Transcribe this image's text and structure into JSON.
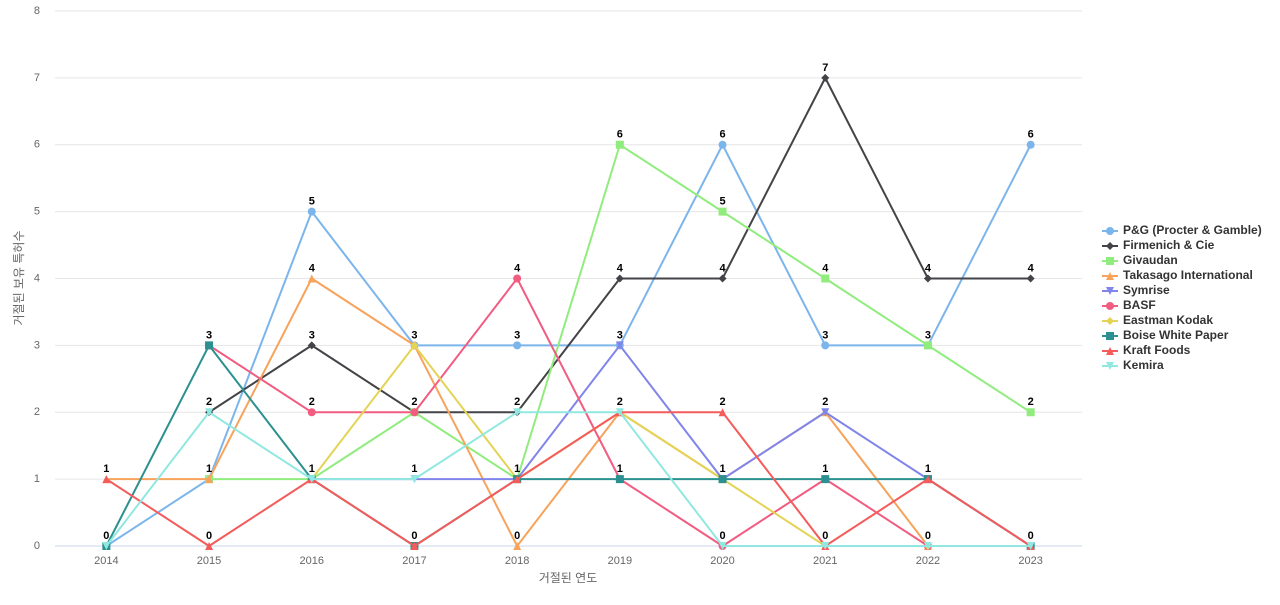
{
  "chart_data": {
    "type": "line",
    "x_label": "거절된 연도",
    "y_label": "거절된 보유 특허수",
    "categories": [
      "2014",
      "2015",
      "2016",
      "2017",
      "2018",
      "2019",
      "2020",
      "2021",
      "2022",
      "2023"
    ],
    "ylim": [
      0,
      8
    ],
    "yticks": [
      0,
      1,
      2,
      3,
      4,
      5,
      6,
      7,
      8
    ],
    "grid": true,
    "legend": "right",
    "series": [
      {
        "name": "P&G (Procter & Gamble)",
        "color": "#7cb5ec",
        "values": [
          0,
          1,
          5,
          3,
          3,
          3,
          6,
          3,
          3,
          6
        ]
      },
      {
        "name": "Firmenich & Cie",
        "color": "#434348",
        "values": [
          null,
          2,
          3,
          2,
          2,
          4,
          4,
          7,
          4,
          4
        ]
      },
      {
        "name": "Givaudan",
        "color": "#90ed7d",
        "values": [
          null,
          1,
          1,
          2,
          1,
          6,
          5,
          4,
          3,
          2
        ]
      },
      {
        "name": "Takasago International",
        "color": "#f7a35c",
        "values": [
          1,
          1,
          4,
          3,
          0,
          2,
          1,
          2,
          0,
          null
        ]
      },
      {
        "name": "Symrise",
        "color": "#8085e9",
        "values": [
          null,
          null,
          1,
          1,
          1,
          3,
          1,
          2,
          1,
          0
        ]
      },
      {
        "name": "BASF",
        "color": "#f15c80",
        "values": [
          null,
          3,
          2,
          2,
          4,
          1,
          0,
          1,
          0,
          0
        ]
      },
      {
        "name": "Eastman Kodak",
        "color": "#e4d354",
        "values": [
          null,
          null,
          1,
          3,
          1,
          2,
          1,
          0,
          0,
          0
        ]
      },
      {
        "name": "Boise White Paper",
        "color": "#2b908f",
        "values": [
          0,
          3,
          1,
          0,
          1,
          1,
          1,
          1,
          1,
          0
        ]
      },
      {
        "name": "Kraft Foods",
        "color": "#f45b5b",
        "values": [
          1,
          0,
          1,
          0,
          1,
          2,
          2,
          0,
          1,
          0
        ]
      },
      {
        "name": "Kemira",
        "color": "#91e8e1",
        "values": [
          0,
          2,
          1,
          1,
          2,
          2,
          0,
          0,
          0,
          0
        ]
      }
    ]
  }
}
